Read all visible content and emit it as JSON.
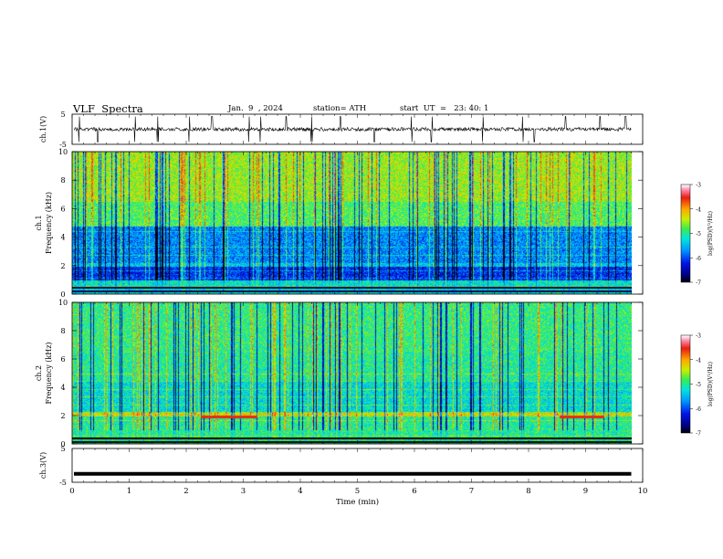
{
  "header": {
    "title": "VLF  Spectra",
    "date": "Jan.  9  , 2024",
    "station": "station= ATH",
    "start": "start  UT  =   23: 40: 1"
  },
  "chart_data": [
    {
      "type": "line",
      "panel": "ch1-waveform",
      "ylabel": "ch.1(V)",
      "ylim": [
        -5,
        5
      ],
      "yticks": [
        "5",
        "-5"
      ],
      "xlim": [
        0,
        10
      ],
      "approx_level": 0,
      "noise_amplitude": 1.2,
      "spike_x": [
        0.12,
        0.45,
        1.1,
        1.5,
        2.05,
        2.45,
        3.1,
        3.3,
        3.75,
        4.2,
        4.7,
        5.3,
        5.95,
        6.3,
        7.2,
        7.9,
        8.1,
        8.65,
        9.25,
        9.7
      ]
    },
    {
      "type": "heatmap",
      "panel": "ch1-spectrogram",
      "ylabel": "ch.1\nFrequency (kHz)",
      "ylim": [
        0,
        10
      ],
      "yticks": [
        "0",
        "2",
        "4",
        "6",
        "8",
        "10"
      ],
      "xlim": [
        0,
        9.8
      ],
      "colorbar": {
        "label": "log(PSD)(V²/Hz)",
        "range": [
          -7,
          -3
        ],
        "ticks": [
          "-3",
          "-4",
          "-5",
          "-6",
          "-7"
        ]
      }
    },
    {
      "type": "heatmap",
      "panel": "ch2-spectrogram",
      "ylabel": "ch.2\nFrequency (kHz)",
      "ylim": [
        0,
        10
      ],
      "yticks": [
        "0",
        "2",
        "4",
        "6",
        "8",
        "10"
      ],
      "xlim": [
        0,
        9.8
      ],
      "colorbar": {
        "label": "log(PSD)(V²/Hz)",
        "range": [
          -7,
          -3
        ],
        "ticks": [
          "-3",
          "-4",
          "-5",
          "-6",
          "-7"
        ]
      }
    },
    {
      "type": "line",
      "panel": "ch3-waveform",
      "ylabel": "ch.3(V)",
      "ylim": [
        -5,
        5
      ],
      "yticks": [
        "5",
        "-5"
      ],
      "xlim": [
        0,
        9.8
      ],
      "approx_level": -2.5
    }
  ],
  "xaxis": {
    "label": "Time  (min)",
    "range": [
      0,
      10
    ],
    "ticks": [
      "0",
      "1",
      "2",
      "3",
      "4",
      "5",
      "6",
      "7",
      "8",
      "9",
      "10"
    ]
  }
}
